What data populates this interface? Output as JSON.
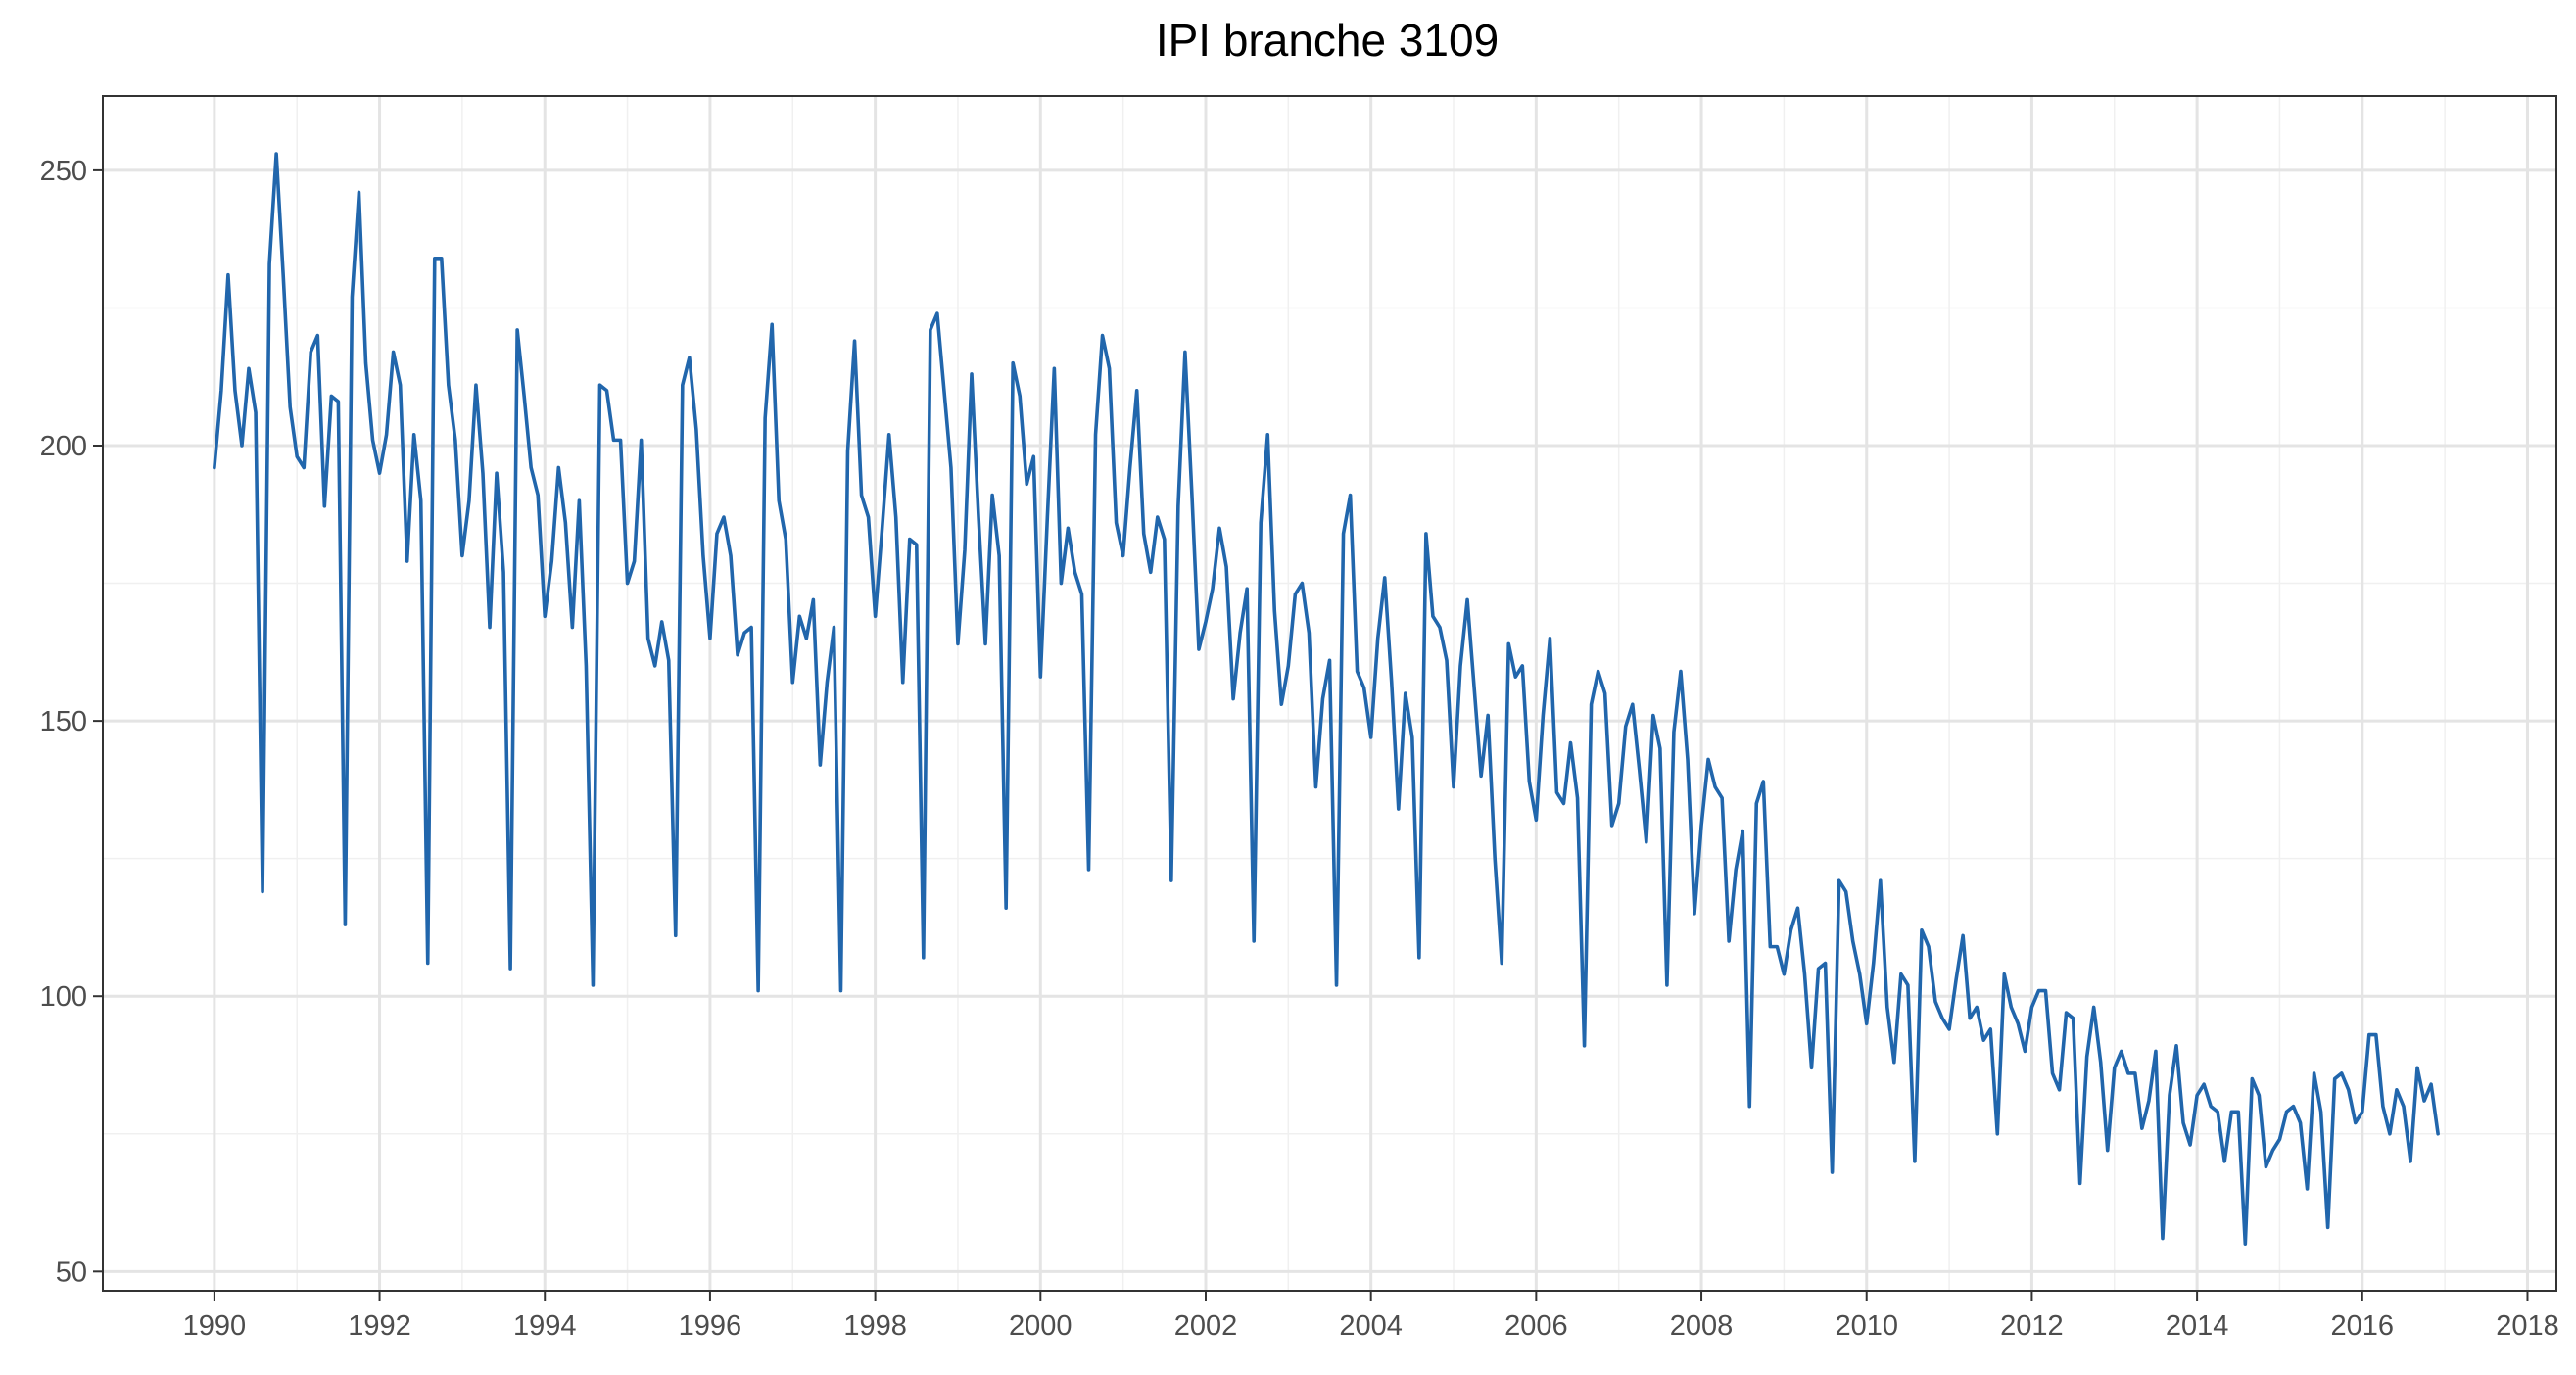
{
  "chart_data": {
    "type": "line",
    "title": "IPI branche 3109",
    "xlabel": "",
    "ylabel": "",
    "xlim": [
      1988.65,
      2018.35
    ],
    "ylim": [
      46.5,
      263.5
    ],
    "x_ticks": [
      1990,
      1992,
      1994,
      1996,
      1998,
      2000,
      2002,
      2004,
      2006,
      2008,
      2010,
      2012,
      2014,
      2016,
      2018
    ],
    "x_tick_labels": [
      "1990",
      "1992",
      "1994",
      "1996",
      "1998",
      "2000",
      "2002",
      "2004",
      "2006",
      "2008",
      "2010",
      "2012",
      "2014",
      "2016",
      "2018"
    ],
    "y_ticks": [
      50,
      100,
      150,
      200,
      250
    ],
    "y_tick_labels": [
      "50",
      "100",
      "150",
      "200",
      "250"
    ],
    "grid": true,
    "legend": "none",
    "x_start": 1990.0,
    "x_step_months": 1,
    "series": [
      {
        "name": "IPI branche 3109",
        "color": "#2166ac",
        "values": [
          196,
          210,
          231,
          210,
          200,
          214,
          206,
          119,
          233,
          253,
          231,
          207,
          198,
          196,
          217,
          220,
          189,
          209,
          208,
          113,
          227,
          246,
          215,
          201,
          195,
          202,
          217,
          211,
          179,
          202,
          190,
          106,
          234,
          234,
          211,
          201,
          180,
          190,
          211,
          195,
          167,
          195,
          177,
          105,
          221,
          209,
          196,
          191,
          169,
          179,
          196,
          186,
          167,
          190,
          160,
          102,
          211,
          210,
          201,
          201,
          175,
          179,
          201,
          165,
          160,
          168,
          161,
          111,
          211,
          216,
          203,
          180,
          165,
          184,
          187,
          180,
          162,
          166,
          167,
          101,
          205,
          222,
          190,
          183,
          157,
          169,
          165,
          172,
          142,
          157,
          167,
          101,
          199,
          219,
          191,
          187,
          169,
          185,
          202,
          187,
          157,
          183,
          182,
          107,
          221,
          224,
          210,
          196,
          164,
          181,
          213,
          187,
          164,
          191,
          180,
          116,
          215,
          209,
          193,
          198,
          158,
          187,
          214,
          175,
          185,
          177,
          173,
          123,
          202,
          220,
          214,
          186,
          180,
          196,
          210,
          184,
          177,
          187,
          183,
          121,
          189,
          217,
          191,
          163,
          168,
          174,
          185,
          178,
          154,
          166,
          174,
          110,
          186,
          202,
          170,
          153,
          160,
          173,
          175,
          166,
          138,
          154,
          161,
          102,
          184,
          191,
          159,
          156,
          147,
          165,
          176,
          157,
          134,
          155,
          147,
          107,
          184,
          169,
          167,
          161,
          138,
          160,
          172,
          156,
          140,
          151,
          125,
          106,
          164,
          158,
          160,
          139,
          132,
          151,
          165,
          137,
          135,
          146,
          136,
          91,
          153,
          159,
          155,
          131,
          135,
          149,
          153,
          141,
          128,
          151,
          145,
          102,
          148,
          159,
          143,
          115,
          131,
          143,
          138,
          136,
          110,
          123,
          130,
          80,
          135,
          139,
          109,
          109,
          104,
          112,
          116,
          104,
          87,
          105,
          106,
          68,
          121,
          119,
          110,
          104,
          95,
          106,
          121,
          98,
          88,
          104,
          102,
          70,
          112,
          109,
          99,
          96,
          94,
          103,
          111,
          96,
          98,
          92,
          94,
          75,
          104,
          98,
          95,
          90,
          98,
          101,
          101,
          86,
          83,
          97,
          96,
          66,
          89,
          98,
          88,
          72,
          87,
          90,
          86,
          86,
          76,
          81,
          90,
          56,
          82,
          91,
          77,
          73,
          82,
          84,
          80,
          79,
          70,
          79,
          79,
          55,
          85,
          82,
          69,
          72,
          74,
          79,
          80,
          77,
          65,
          86,
          79,
          58,
          85,
          86,
          83,
          77,
          79,
          93,
          93,
          80,
          75,
          83,
          80,
          70,
          87,
          81,
          84,
          75
        ]
      }
    ]
  }
}
